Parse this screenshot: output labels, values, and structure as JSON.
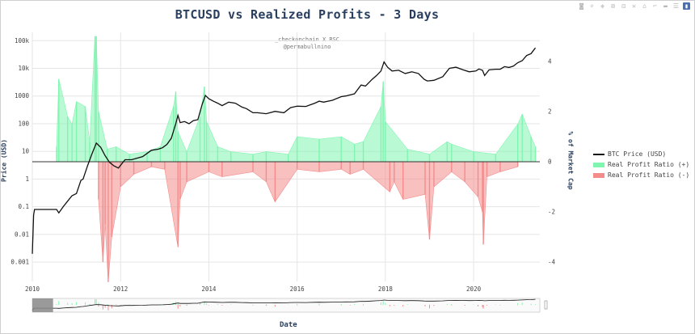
{
  "title": "BTCUSD vs Realized Profits - 3 Days",
  "watermark": {
    "line1": "_checkonchain X RSC",
    "line2": "@permabullnino"
  },
  "modebar": {
    "icons": [
      "camera-icon",
      "zoom-icon",
      "pan-icon",
      "zoom-in-icon",
      "zoom-out-icon",
      "autoscale-icon",
      "reset-axes-icon",
      "spike-lines-icon",
      "hover-closest-icon",
      "hover-compare-icon",
      "plotly-logo-icon"
    ]
  },
  "legend": {
    "placement": "right",
    "items": [
      {
        "label": "BTC Price (USD)",
        "color": "#111111"
      },
      {
        "label": "Real Profit Ratio (+)",
        "color": "#7ff5b0"
      },
      {
        "label": "Real Profit Ratio (-)",
        "color": "#f48c8c"
      }
    ]
  },
  "axes": {
    "x_title": "Date",
    "y_title": "Price (USD)",
    "y2_title": "% of Market Cap",
    "x_ticks": [
      "2010",
      "2012",
      "2014",
      "2016",
      "2018",
      "2020"
    ],
    "y_ticks": [
      "0.001",
      "0.01",
      "0.1",
      "1",
      "10",
      "100",
      "1000",
      "10k",
      "100k"
    ],
    "y2_ticks": [
      "-4",
      "-2",
      "0",
      "2",
      "4"
    ]
  },
  "chart_data": {
    "type": "line",
    "title": "BTCUSD vs Realized Profits - 3 Days",
    "xlabel": "Date",
    "ylabel": "Price (USD)",
    "y2label": "% of Market Cap",
    "xlim": [
      2010.0,
      2021.5
    ],
    "ylim": [
      0.0002,
      200000
    ],
    "y_scale": "log",
    "y2lim": [
      -5,
      5
    ],
    "grid": true,
    "legend": "right",
    "rangeslider": true,
    "series": [
      {
        "name": "BTC Price (USD)",
        "color": "#111111",
        "axis": "y",
        "x": [
          2010.0,
          2010.03,
          2010.05,
          2010.55,
          2010.6,
          2010.7,
          2010.85,
          2010.9,
          2011.0,
          2011.1,
          2011.15,
          2011.25,
          2011.35,
          2011.45,
          2011.55,
          2011.65,
          2011.75,
          2011.85,
          2011.95,
          2012.1,
          2012.25,
          2012.5,
          2012.7,
          2012.85,
          2012.95,
          2013.05,
          2013.15,
          2013.25,
          2013.3,
          2013.35,
          2013.45,
          2013.55,
          2013.65,
          2013.75,
          2013.85,
          2013.92,
          2014.0,
          2014.1,
          2014.2,
          2014.3,
          2014.45,
          2014.6,
          2014.75,
          2014.85,
          2015.0,
          2015.1,
          2015.3,
          2015.5,
          2015.7,
          2015.85,
          2016.0,
          2016.2,
          2016.4,
          2016.5,
          2016.6,
          2016.8,
          2017.0,
          2017.1,
          2017.3,
          2017.45,
          2017.55,
          2017.7,
          2017.8,
          2017.9,
          2017.97,
          2018.05,
          2018.15,
          2018.3,
          2018.45,
          2018.6,
          2018.75,
          2018.88,
          2018.95,
          2019.1,
          2019.3,
          2019.45,
          2019.6,
          2019.75,
          2019.9,
          2020.05,
          2020.12,
          2020.2,
          2020.25,
          2020.35,
          2020.5,
          2020.6,
          2020.7,
          2020.8,
          2020.9,
          2021.0,
          2021.1,
          2021.2,
          2021.3,
          2021.4
        ],
        "y": [
          0.002,
          0.05,
          0.08,
          0.08,
          0.06,
          0.1,
          0.2,
          0.25,
          0.3,
          0.9,
          1.0,
          3.0,
          8.0,
          20.0,
          14.0,
          7.0,
          4.0,
          3.0,
          2.5,
          5.0,
          5.0,
          6.5,
          11.0,
          12.0,
          13.5,
          18.0,
          30.0,
          100.0,
          200.0,
          110.0,
          120.0,
          100.0,
          130.0,
          140.0,
          500.0,
          1050.0,
          800.0,
          650.0,
          550.0,
          450.0,
          600.0,
          550.0,
          400.0,
          350.0,
          250.0,
          250.0,
          230.0,
          280.0,
          250.0,
          380.0,
          430.0,
          420.0,
          550.0,
          650.0,
          600.0,
          700.0,
          950.0,
          1000.0,
          1200.0,
          2500.0,
          2300.0,
          4000.0,
          5500.0,
          8000.0,
          17000.0,
          11000.0,
          8000.0,
          8500.0,
          6500.0,
          7500.0,
          6500.0,
          4000.0,
          3500.0,
          3700.0,
          5000.0,
          10000.0,
          11000.0,
          9000.0,
          7500.0,
          8000.0,
          9500.0,
          8500.0,
          5500.0,
          8800.0,
          9300.0,
          9300.0,
          11500.0,
          10800.0,
          12000.0,
          16000.0,
          19000.0,
          29000.0,
          34000.0,
          55000.0
        ]
      },
      {
        "name": "Real Profit Ratio (+)",
        "color": "#7ff5b0",
        "axis": "y2",
        "x": [
          2010.55,
          2010.6,
          2010.8,
          2010.9,
          2011.0,
          2011.2,
          2011.3,
          2011.42,
          2011.45,
          2011.5,
          2011.7,
          2011.9,
          2012.2,
          2012.6,
          2012.9,
          2013.2,
          2013.25,
          2013.3,
          2013.5,
          2013.8,
          2013.9,
          2013.95,
          2014.2,
          2014.5,
          2015.0,
          2015.3,
          2015.8,
          2016.0,
          2016.5,
          2017.0,
          2017.3,
          2017.5,
          2017.9,
          2017.95,
          2018.0,
          2018.5,
          2019.0,
          2019.4,
          2019.5,
          2020.0,
          2020.5,
          2021.0,
          2021.1,
          2021.3,
          2021.4
        ],
        "y": [
          0.6,
          3.3,
          1.8,
          1.5,
          2.4,
          2.2,
          0.8,
          5.0,
          5.0,
          2.0,
          0.5,
          0.6,
          0.3,
          0.4,
          0.6,
          2.2,
          2.8,
          1.2,
          0.4,
          1.8,
          3.0,
          1.6,
          0.6,
          0.4,
          0.3,
          0.4,
          0.3,
          1.0,
          0.9,
          1.0,
          0.7,
          0.8,
          2.2,
          3.2,
          1.6,
          0.5,
          0.3,
          0.8,
          0.7,
          0.4,
          0.3,
          1.5,
          1.9,
          1.0,
          0.6
        ]
      },
      {
        "name": "Real Profit Ratio (-)",
        "color": "#f48c8c",
        "axis": "y2",
        "x": [
          2011.5,
          2011.6,
          2011.65,
          2011.72,
          2011.8,
          2012.0,
          2012.3,
          2012.7,
          2013.0,
          2013.3,
          2013.35,
          2013.5,
          2014.0,
          2014.3,
          2015.0,
          2015.3,
          2015.5,
          2016.0,
          2016.5,
          2017.0,
          2017.2,
          2017.5,
          2018.1,
          2018.2,
          2018.4,
          2018.9,
          2019.0,
          2019.1,
          2019.5,
          2019.8,
          2020.1,
          2020.2,
          2020.22,
          2020.3,
          2020.6,
          2021.0
        ],
        "y": [
          -1.5,
          -4.0,
          -2.5,
          -4.8,
          -3.0,
          -1.0,
          -0.5,
          -0.2,
          -0.3,
          -3.4,
          -1.5,
          -0.8,
          -0.4,
          -0.6,
          -0.4,
          -0.8,
          -1.6,
          -0.3,
          -0.4,
          -0.3,
          -0.5,
          -0.3,
          -1.2,
          -0.8,
          -1.5,
          -1.3,
          -3.1,
          -1.0,
          -0.4,
          -0.8,
          -1.4,
          -2.0,
          -3.3,
          -0.6,
          -0.4,
          -0.2
        ]
      }
    ]
  }
}
